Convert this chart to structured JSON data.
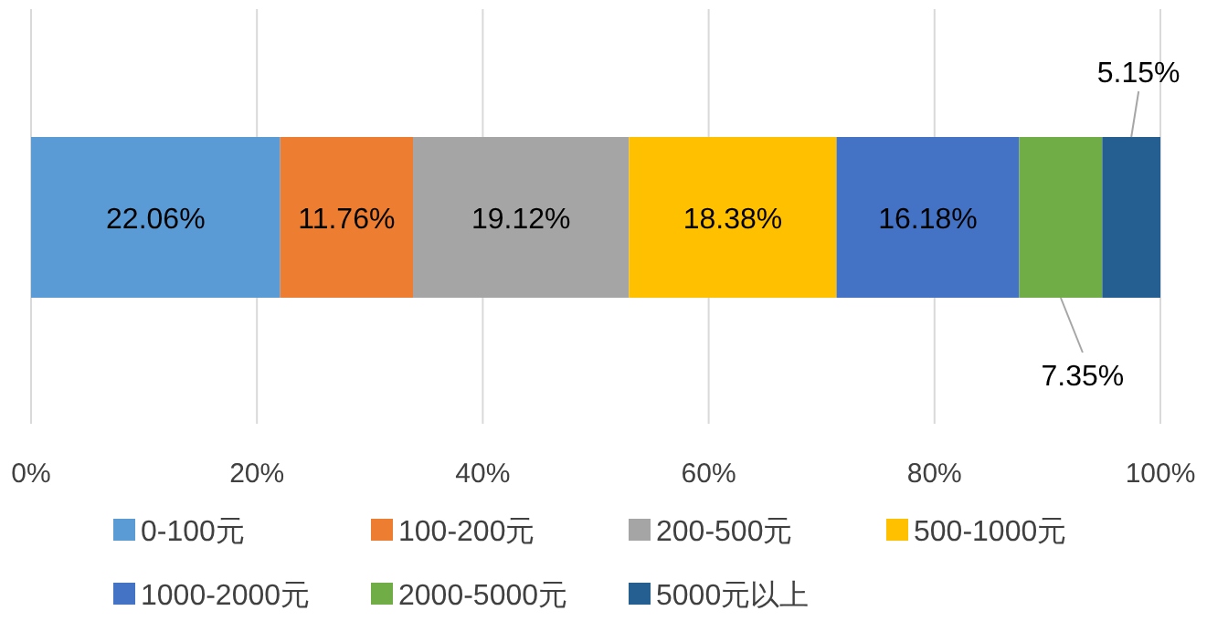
{
  "chart_data": {
    "type": "bar",
    "orientation": "horizontal",
    "stacked": true,
    "categories": [
      null
    ],
    "series": [
      {
        "name": "0-100元",
        "color": "#5b9bd5",
        "values": [
          22.06
        ],
        "value_labels": [
          "22.06%"
        ]
      },
      {
        "name": "100-200元",
        "color": "#ed7d31",
        "values": [
          11.76
        ],
        "value_labels": [
          "11.76%"
        ]
      },
      {
        "name": "200-500元",
        "color": "#a5a5a5",
        "values": [
          19.12
        ],
        "value_labels": [
          "19.12%"
        ]
      },
      {
        "name": "500-1000元",
        "color": "#ffc000",
        "values": [
          18.38
        ],
        "value_labels": [
          "18.38%"
        ]
      },
      {
        "name": "1000-2000元",
        "color": "#4472c4",
        "values": [
          16.18
        ],
        "value_labels": [
          "16.18%"
        ]
      },
      {
        "name": "2000-5000元",
        "color": "#70ad47",
        "values": [
          7.35
        ],
        "value_labels": [
          "7.35%"
        ]
      },
      {
        "name": "5000元以上",
        "color": "#255e91",
        "values": [
          5.15
        ],
        "value_labels": [
          "5.15%"
        ]
      }
    ],
    "xlim": [
      0,
      100
    ],
    "xticks": [
      {
        "value": 0,
        "label": "0%"
      },
      {
        "value": 20,
        "label": "20%"
      },
      {
        "value": 40,
        "label": "40%"
      },
      {
        "value": 60,
        "label": "60%"
      },
      {
        "value": 80,
        "label": "80%"
      },
      {
        "value": 100,
        "label": "100%"
      }
    ],
    "grid": "x",
    "legend": "bottom"
  }
}
